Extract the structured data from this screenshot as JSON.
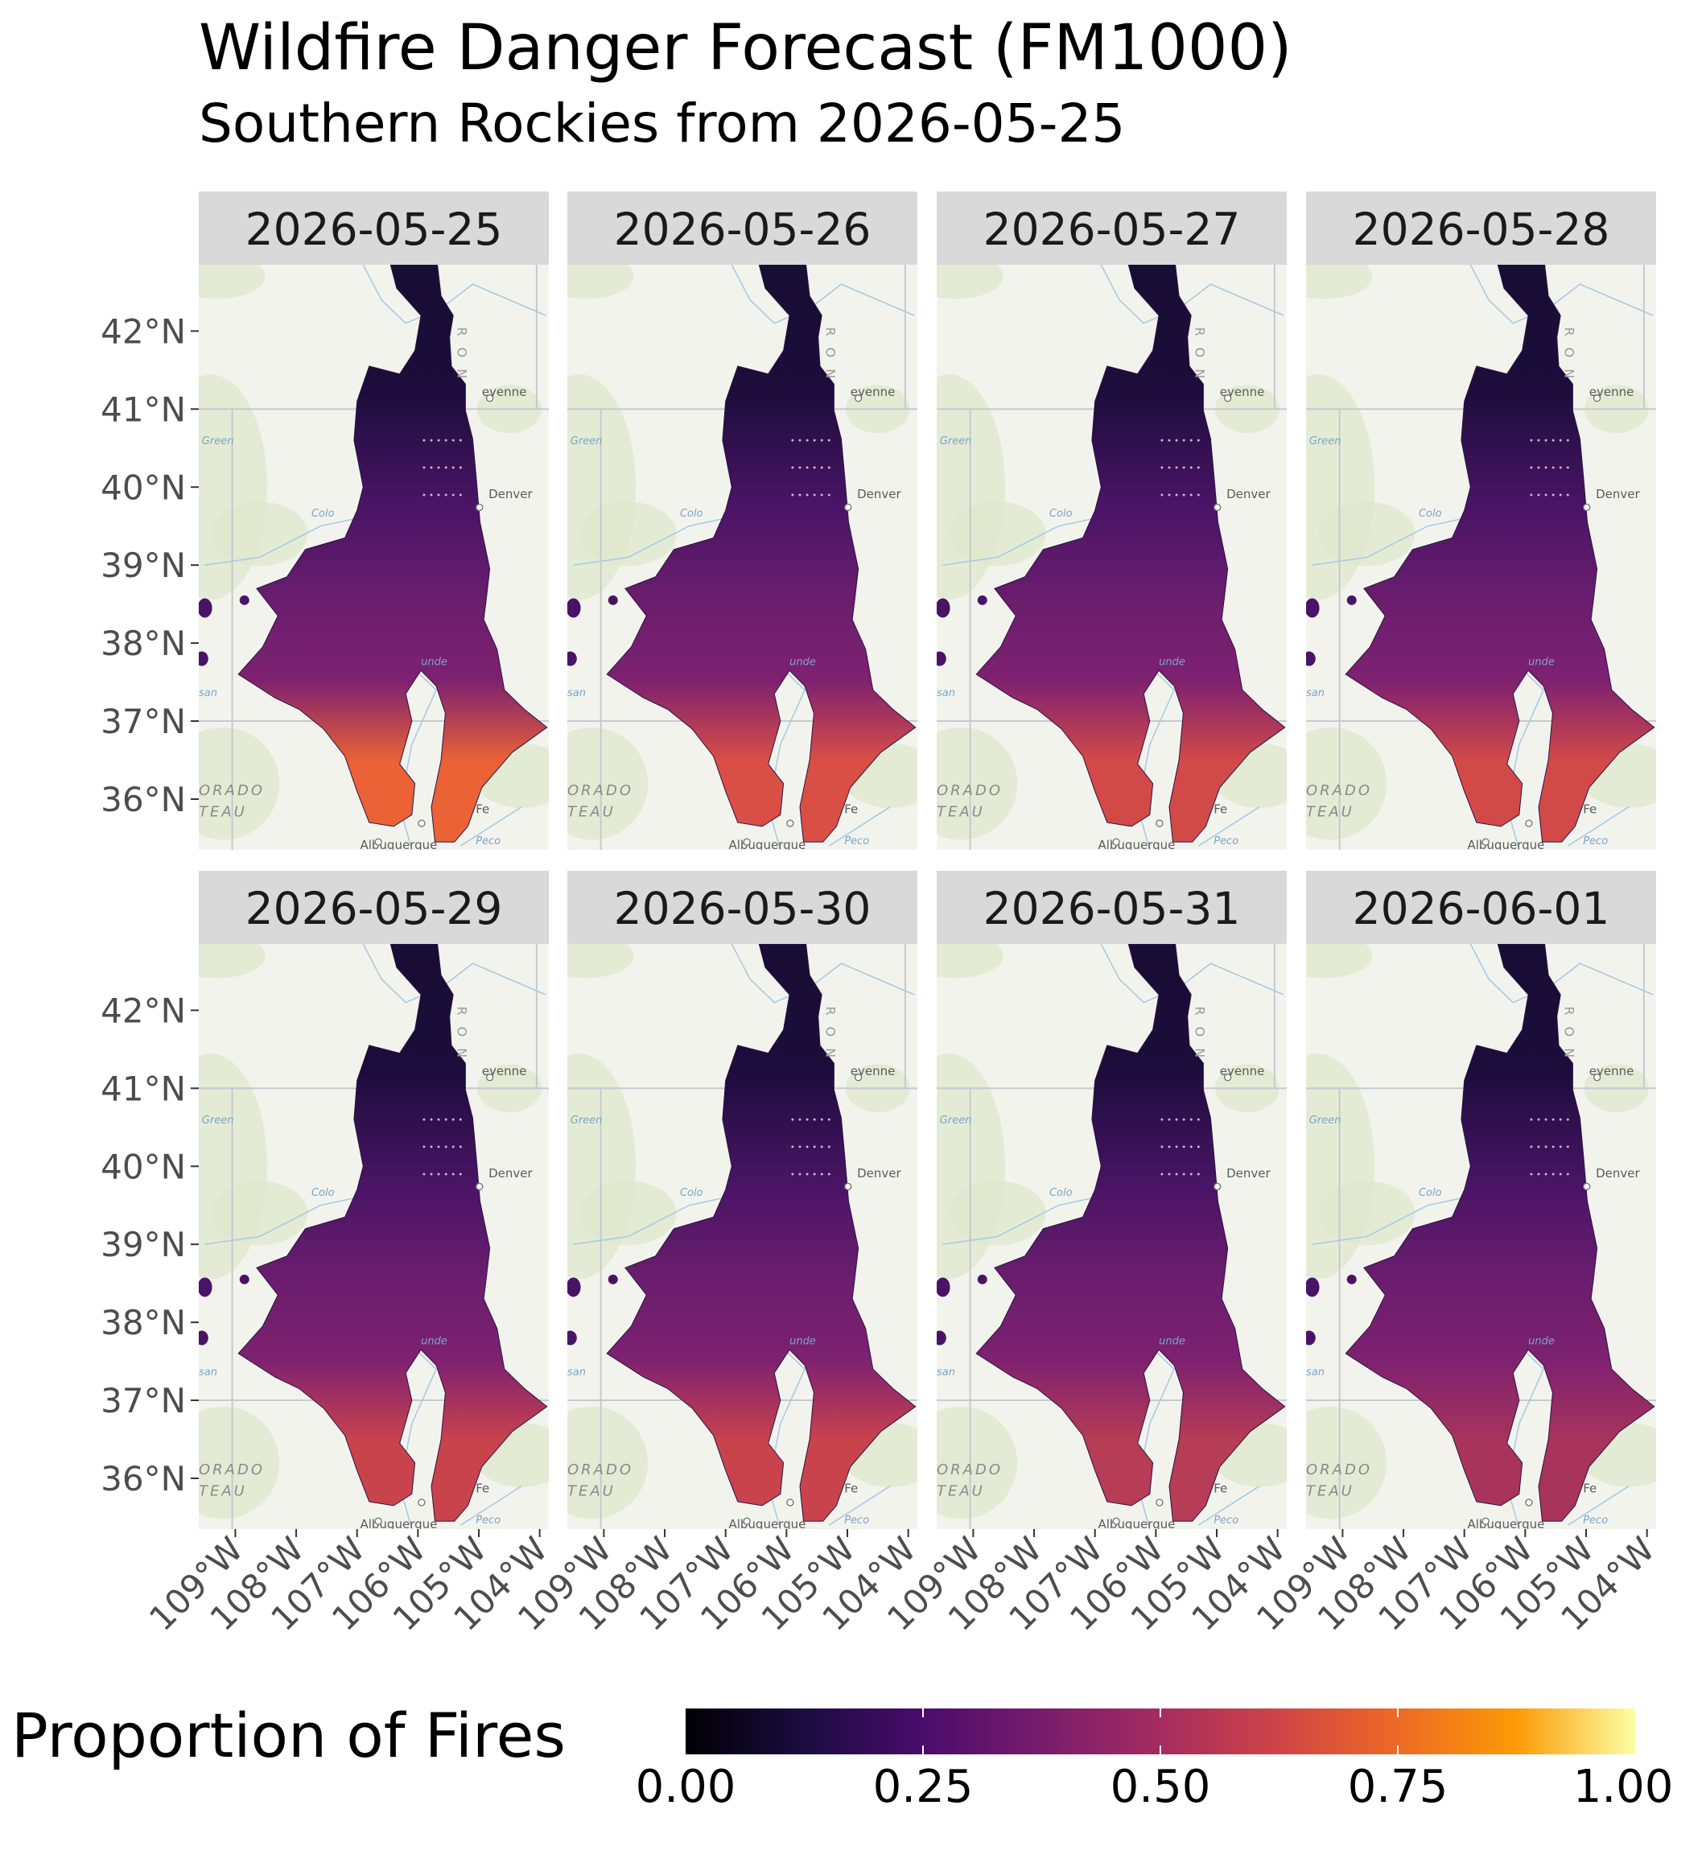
{
  "title": "Wildfire Danger Forecast (FM1000)",
  "subtitle": "Southern Rockies from 2026-05-25",
  "panels": [
    "2026-05-25",
    "2026-05-26",
    "2026-05-27",
    "2026-05-28",
    "2026-05-29",
    "2026-05-30",
    "2026-05-31",
    "2026-06-01"
  ],
  "y_axis_labels": [
    "42°N",
    "41°N",
    "40°N",
    "39°N",
    "38°N",
    "37°N",
    "36°N"
  ],
  "x_axis_labels": [
    "109°W",
    "108°W",
    "107°W",
    "106°W",
    "105°W",
    "104°W"
  ],
  "basemap_labels": {
    "cheyenne": "eyenne",
    "denver": "Denver",
    "santa_fe": "Fe",
    "plateau_1": "ORADO",
    "plateau_2": "TEAU",
    "range": "RON",
    "colorado_river": "Colo",
    "green_river": "Green",
    "rio_grande": "unde",
    "san_juan": "san",
    "albuquerque": "Albuquerque",
    "pecos": "Peco"
  },
  "legend": {
    "title": "Proportion of Fires",
    "ticks": [
      "0.00",
      "0.25",
      "0.50",
      "0.75",
      "1.00"
    ],
    "colors": [
      "#000004",
      "#1b0c41",
      "#4a0c6b",
      "#781c6d",
      "#a52c60",
      "#cf4446",
      "#ed6925",
      "#fb9b06",
      "#fcffa4"
    ]
  },
  "map_extent": {
    "lon": [
      -109.6,
      -103.85
    ],
    "lat": [
      35.35,
      42.85
    ]
  },
  "layer_colors": {
    "north": "#180d34",
    "central": "#4a1466",
    "south_west": "#b63f57",
    "south_east": "#7e2170",
    "hot_spot_by_day": [
      "#ea6236",
      "#d94f45",
      "#d24a48",
      "#d24a48",
      "#c9434d",
      "#c9434d",
      "#b73c55",
      "#a8345c"
    ]
  }
}
